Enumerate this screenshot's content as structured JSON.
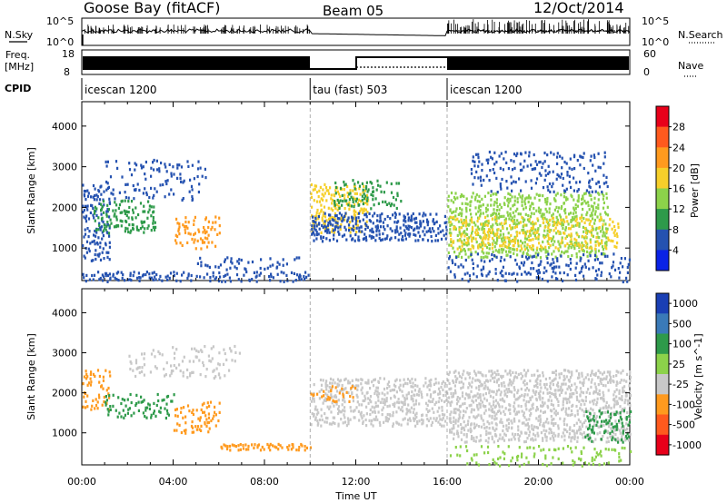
{
  "header": {
    "station": "Goose Bay (fitACF)",
    "beam": "Beam 05",
    "date": "12/Oct/2014"
  },
  "strips": {
    "nsky_label": "N.Sky",
    "nsky_ticks": [
      "10^5",
      "10^0"
    ],
    "nsearch_label": "N.Search",
    "nsearch_ticks": [
      "10^5",
      "10^0"
    ],
    "freq_label_1": "Freq.",
    "freq_label_2": "[MHz]",
    "freq_ticks": [
      "18",
      "8"
    ],
    "nave_label": "Nave",
    "nave_ticks": [
      "60",
      "0"
    ],
    "cpid_label": "CPID",
    "cpid_segments": [
      {
        "label": "icescan 1200",
        "start_h": 0,
        "end_h": 10
      },
      {
        "label": "tau (fast) 503",
        "start_h": 10,
        "end_h": 16
      },
      {
        "label": "icescan 1200",
        "start_h": 16,
        "end_h": 24
      }
    ]
  },
  "chart_data": [
    {
      "type": "heatmap",
      "name": "power-panel",
      "ylabel": "Slant Range [km]",
      "xlabel": "",
      "xlim_hours": [
        0,
        24
      ],
      "ylim": [
        200,
        4600
      ],
      "yticks": [
        "4000",
        "3000",
        "2000",
        "1000"
      ],
      "colorbar": {
        "label": "Power [dB]",
        "ticks": [
          "28",
          "24",
          "20",
          "16",
          "12",
          "8",
          "4"
        ],
        "colors": [
          "#e8001a",
          "#ff5a1e",
          "#ff9a1e",
          "#f6cf2a",
          "#8cd24a",
          "#2e9a4a",
          "#2552b0",
          "#0a22e6"
        ]
      },
      "regions": [
        {
          "t0": 0.0,
          "t1": 1.2,
          "r0": 700,
          "r1": 2600,
          "color": "#2552b0",
          "density": 0.5
        },
        {
          "t0": 0.5,
          "t1": 3.2,
          "r0": 1400,
          "r1": 2200,
          "color": "#2e9a4a",
          "density": 0.45
        },
        {
          "t0": 1.0,
          "t1": 5.5,
          "r0": 2200,
          "r1": 3200,
          "color": "#2552b0",
          "density": 0.22
        },
        {
          "t0": 4.0,
          "t1": 6.0,
          "r0": 1000,
          "r1": 1800,
          "color": "#ff9a1e",
          "density": 0.4
        },
        {
          "t0": 5.0,
          "t1": 9.5,
          "r0": 500,
          "r1": 800,
          "color": "#2552b0",
          "density": 0.35
        },
        {
          "t0": 0.0,
          "t1": 10.0,
          "r0": 200,
          "r1": 450,
          "color": "#2552b0",
          "density": 0.45
        },
        {
          "t0": 10.0,
          "t1": 12.5,
          "r0": 1400,
          "r1": 2600,
          "color": "#f6cf2a",
          "density": 0.55
        },
        {
          "t0": 10.0,
          "t1": 16.0,
          "r0": 1200,
          "r1": 1900,
          "color": "#2552b0",
          "density": 0.6
        },
        {
          "t0": 11.0,
          "t1": 14.0,
          "r0": 2000,
          "r1": 2700,
          "color": "#2e9a4a",
          "density": 0.35
        },
        {
          "t0": 16.0,
          "t1": 23.0,
          "r0": 800,
          "r1": 2400,
          "color": "#8cd24a",
          "density": 0.55
        },
        {
          "t0": 16.0,
          "t1": 23.5,
          "r0": 1000,
          "r1": 1800,
          "color": "#f6cf2a",
          "density": 0.4
        },
        {
          "t0": 16.0,
          "t1": 24.0,
          "r0": 200,
          "r1": 900,
          "color": "#2552b0",
          "density": 0.3
        },
        {
          "t0": 17.0,
          "t1": 23.0,
          "r0": 2400,
          "r1": 3400,
          "color": "#2552b0",
          "density": 0.25
        }
      ]
    },
    {
      "type": "heatmap",
      "name": "velocity-panel",
      "ylabel": "Slant Range [km]",
      "xlabel": "Time UT",
      "xlim_hours": [
        0,
        24
      ],
      "xticks": [
        "00:00",
        "04:00",
        "08:00",
        "12:00",
        "16:00",
        "20:00",
        "00:00"
      ],
      "ylim": [
        200,
        4600
      ],
      "yticks": [
        "4000",
        "3000",
        "2000",
        "1000"
      ],
      "colorbar": {
        "label": "Velocity [m s^-1]",
        "ticks": [
          "1000",
          "500",
          "100",
          "25",
          "-25",
          "-100",
          "-500",
          "-1000"
        ],
        "colors": [
          "#1a3fb4",
          "#3a7ab8",
          "#2e9a4a",
          "#8cd24a",
          "#c8c8c8",
          "#ff9a1e",
          "#ff5a1e",
          "#e8001a"
        ]
      },
      "regions": [
        {
          "t0": 0.0,
          "t1": 1.2,
          "r0": 1600,
          "r1": 2600,
          "color": "#ff9a1e",
          "density": 0.4
        },
        {
          "t0": 1.0,
          "t1": 4.0,
          "r0": 1400,
          "r1": 2000,
          "color": "#2e9a4a",
          "density": 0.35
        },
        {
          "t0": 4.0,
          "t1": 6.0,
          "r0": 1000,
          "r1": 1800,
          "color": "#ff9a1e",
          "density": 0.4
        },
        {
          "t0": 2.0,
          "t1": 7.0,
          "r0": 2400,
          "r1": 3200,
          "color": "#c8c8c8",
          "density": 0.25
        },
        {
          "t0": 6.0,
          "t1": 10.0,
          "r0": 600,
          "r1": 750,
          "color": "#ff9a1e",
          "density": 0.7
        },
        {
          "t0": 10.0,
          "t1": 16.0,
          "r0": 1200,
          "r1": 2400,
          "color": "#c8c8c8",
          "density": 0.55
        },
        {
          "t0": 10.0,
          "t1": 12.0,
          "r0": 1800,
          "r1": 2200,
          "color": "#ff9a1e",
          "density": 0.3
        },
        {
          "t0": 16.0,
          "t1": 24.0,
          "r0": 800,
          "r1": 2600,
          "color": "#c8c8c8",
          "density": 0.6
        },
        {
          "t0": 22.0,
          "t1": 24.0,
          "r0": 800,
          "r1": 1600,
          "color": "#2e9a4a",
          "density": 0.4
        },
        {
          "t0": 16.0,
          "t1": 24.0,
          "r0": 200,
          "r1": 700,
          "color": "#8cd24a",
          "density": 0.2
        }
      ]
    }
  ]
}
